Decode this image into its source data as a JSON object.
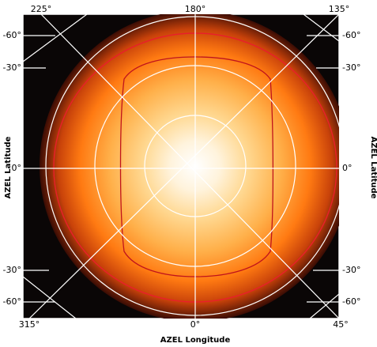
{
  "chart_data": {
    "type": "heatmap",
    "projection": "azimuthal all-sky (AZEL)",
    "title": "",
    "xlabel": "AZEL Longitude",
    "ylabel": "AZEL Latitude",
    "ylabel_right": "AZEL Latitude",
    "top_tick_labels": [
      "225°",
      "180°",
      "135°"
    ],
    "bottom_tick_labels": [
      "315°",
      "0°",
      "45°"
    ],
    "left_tick_labels": [
      "-60°",
      "-30°",
      "0°",
      "-30°",
      "-60°"
    ],
    "right_tick_labels": [
      "-60°",
      "-30°",
      "0°",
      "-30°",
      "-60°"
    ],
    "grid": true,
    "colormap": "black-red-orange-yellow-white",
    "colors": {
      "background": "#0a0606",
      "plot_frame": "#ffffff",
      "grid": "#ffffff",
      "outer_contour": "#e8202a",
      "inner_contour": "#c0141c",
      "tick_text": "#000000"
    },
    "contours": 2,
    "peak": "center (zenith)"
  }
}
